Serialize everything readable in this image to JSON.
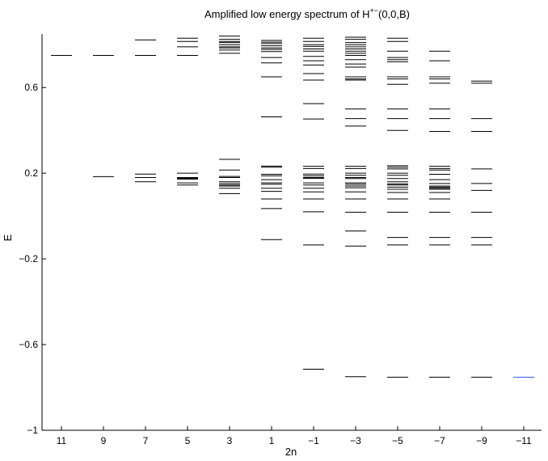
{
  "chart_data": {
    "type": "scatter",
    "title": "Amplified low energy spectrum of H",
    "title_superscript": "+−",
    "title_suffix": "(0,0,B)",
    "xlabel": "2n",
    "ylabel": "E",
    "ylim": [
      -1,
      0.85
    ],
    "yticks": [
      0.6,
      0.2,
      -0.2,
      -0.6,
      -1
    ],
    "ytick_labels": [
      "0.6",
      "0.2",
      "−0.2",
      "−0.6",
      "−1"
    ],
    "categories": [
      "11",
      "9",
      "7",
      "5",
      "3",
      "1",
      "−1",
      "−3",
      "−5",
      "−7",
      "−9",
      "−11"
    ],
    "grid": false,
    "levels": [
      {
        "n": "11",
        "energies": [
          0.75
        ]
      },
      {
        "n": "9",
        "energies": [
          0.75,
          0.184
        ]
      },
      {
        "n": "7",
        "energies": [
          0.822,
          0.75,
          0.196,
          0.18,
          0.16
        ]
      },
      {
        "n": "5",
        "energies": [
          0.83,
          0.815,
          0.79,
          0.75,
          0.2,
          0.18,
          0.176,
          0.172,
          0.155,
          0.145
        ]
      },
      {
        "n": "3",
        "energies": [
          0.84,
          0.825,
          0.815,
          0.81,
          0.8,
          0.79,
          0.785,
          0.775,
          0.76,
          0.265,
          0.215,
          0.185,
          0.18,
          0.16,
          0.152,
          0.145,
          0.14,
          0.13,
          0.105
        ]
      },
      {
        "n": "1",
        "energies": [
          0.82,
          0.812,
          0.805,
          0.795,
          0.785,
          0.778,
          0.768,
          0.74,
          0.715,
          0.65,
          0.463,
          0.233,
          0.228,
          0.195,
          0.188,
          0.17,
          0.155,
          0.148,
          0.13,
          0.115,
          0.08,
          0.035,
          -0.11
        ]
      },
      {
        "n": "−1",
        "energies": [
          0.83,
          0.815,
          0.8,
          0.792,
          0.78,
          0.77,
          0.745,
          0.725,
          0.705,
          0.665,
          0.635,
          0.525,
          0.453,
          0.232,
          0.222,
          0.196,
          0.188,
          0.18,
          0.176,
          0.155,
          0.145,
          0.13,
          0.113,
          0.08,
          0.02,
          -0.135,
          -0.715
        ]
      },
      {
        "n": "−3",
        "energies": [
          0.835,
          0.825,
          0.81,
          0.8,
          0.79,
          0.78,
          0.77,
          0.76,
          0.75,
          0.73,
          0.71,
          0.695,
          0.65,
          0.64,
          0.635,
          0.5,
          0.455,
          0.42,
          0.232,
          0.222,
          0.2,
          0.19,
          0.18,
          0.175,
          0.155,
          0.148,
          0.14,
          0.132,
          0.113,
          0.08,
          0.018,
          -0.07,
          -0.14,
          -0.75
        ]
      },
      {
        "n": "−5",
        "energies": [
          0.83,
          0.815,
          0.77,
          0.74,
          0.73,
          0.72,
          0.65,
          0.64,
          0.615,
          0.5,
          0.455,
          0.4,
          0.235,
          0.228,
          0.22,
          0.2,
          0.19,
          0.175,
          0.16,
          0.15,
          0.145,
          0.135,
          0.125,
          0.11,
          0.08,
          0.018,
          -0.1,
          -0.135,
          -0.752
        ]
      },
      {
        "n": "−7",
        "energies": [
          0.77,
          0.725,
          0.65,
          0.64,
          0.62,
          0.5,
          0.455,
          0.395,
          0.232,
          0.222,
          0.215,
          0.195,
          0.17,
          0.152,
          0.14,
          0.135,
          0.13,
          0.125,
          0.11,
          0.08,
          0.018,
          -0.1,
          -0.135,
          -0.752
        ]
      },
      {
        "n": "−9",
        "energies": [
          0.63,
          0.62,
          0.455,
          0.395,
          0.22,
          0.152,
          0.12,
          0.018,
          -0.1,
          -0.135,
          -0.752
        ]
      },
      {
        "n": "−11",
        "energies": [
          -0.752
        ],
        "color": "#3355ee"
      }
    ],
    "line_color": "#000000",
    "highlight_color": "#3355ee"
  }
}
